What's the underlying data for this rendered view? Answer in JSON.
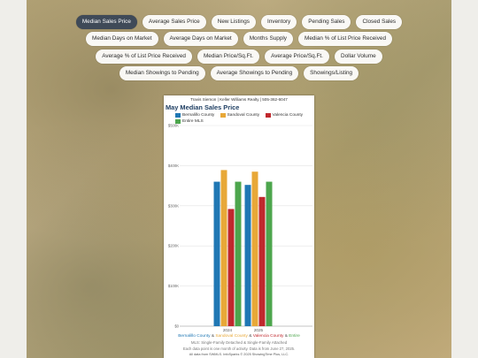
{
  "nav": {
    "rows": [
      [
        "Median Sales Price",
        "Average Sales Price",
        "New Listings",
        "Inventory",
        "Pending Sales",
        "Closed Sales"
      ],
      [
        "Median Days on Market",
        "Average Days on Market",
        "Months Supply",
        "Median % of List Price Received"
      ],
      [
        "Average % of List Price Received",
        "Median Price/Sq.Ft.",
        "Average Price/Sq.Ft.",
        "Dollar Volume"
      ],
      [
        "Median Showings to Pending",
        "Average Showings to Pending",
        "Showings/Listing"
      ]
    ],
    "active": "Median Sales Price"
  },
  "card": {
    "agent": "Travis Siemon | Keller Williams Realty | 505-362-6047",
    "footer_line2": "MLS: Single-Family Detached & Single-Family Attached",
    "footer_line3": "Each data point is one month of activity. Data is from June 27, 2025.",
    "footer_line4": "All data from SWMLS. InfoSparks © 2025 ShowingTime Plus, LLC."
  },
  "colors": {
    "bernalillo": "#1f77b4",
    "sandoval": "#e8a838",
    "valencia": "#c0282d",
    "entire": "#4da64d",
    "active_pill": "#3f4a58"
  },
  "chart_data": {
    "type": "bar",
    "title": "May Median Sales Price",
    "categories": [
      "2024",
      "2025"
    ],
    "series": [
      {
        "name": "Bernalillo County",
        "values": [
          360000,
          352000
        ]
      },
      {
        "name": "Sandoval County",
        "values": [
          389000,
          385000
        ]
      },
      {
        "name": "Valencia County",
        "values": [
          292000,
          322000
        ]
      },
      {
        "name": "Entire MLS",
        "values": [
          360000,
          360000
        ]
      }
    ],
    "ylim": [
      0,
      500000
    ],
    "yticks": [
      "$0",
      "$100K",
      "$200K",
      "$300K",
      "$400K",
      "$500K"
    ],
    "grid": true,
    "legend": "top-left",
    "caption": {
      "parts": [
        {
          "text": "Bernalillo County",
          "color": "#1f77b4"
        },
        {
          "text": " & ",
          "color": "#555555"
        },
        {
          "text": "Sandoval County",
          "color": "#e8a838"
        },
        {
          "text": " & ",
          "color": "#555555"
        },
        {
          "text": "Valencia County",
          "color": "#c0282d"
        },
        {
          "text": " & ",
          "color": "#555555"
        },
        {
          "text": "Entire",
          "color": "#4da64d"
        }
      ]
    }
  }
}
